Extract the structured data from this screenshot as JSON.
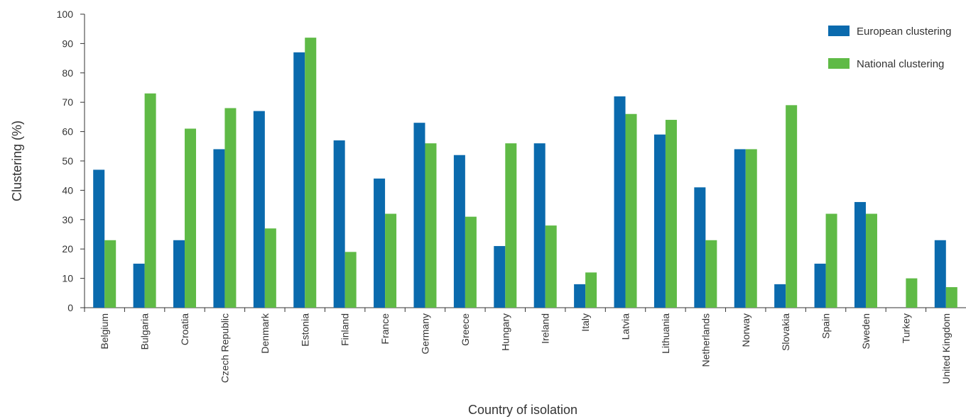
{
  "chart_data": {
    "type": "bar",
    "title": "",
    "xlabel": "Country of isolation",
    "ylabel": "Clustering (%)",
    "ylim": [
      0,
      100
    ],
    "yticks": [
      0,
      10,
      20,
      30,
      40,
      50,
      60,
      70,
      80,
      90,
      100
    ],
    "grid": false,
    "legend_position": "top-right",
    "categories": [
      "Belgium",
      "Bulgaria",
      "Croatia",
      "Czech Republic",
      "Denmark",
      "Estonia",
      "Finland",
      "France",
      "Germany",
      "Greece",
      "Hungary",
      "Ireland",
      "Italy",
      "Latvia",
      "Lithuania",
      "Netherlands",
      "Norway",
      "Slovakia",
      "Spain",
      "Sweden",
      "Turkey",
      "United Kingdom"
    ],
    "series": [
      {
        "name": "European clustering",
        "color": "#0a6aad",
        "values": [
          47,
          15,
          23,
          54,
          67,
          87,
          57,
          44,
          63,
          52,
          21,
          56,
          8,
          72,
          59,
          41,
          54,
          8,
          15,
          36,
          0,
          23
        ]
      },
      {
        "name": "National clustering",
        "color": "#5fba46",
        "values": [
          23,
          73,
          61,
          68,
          27,
          92,
          19,
          32,
          56,
          31,
          56,
          28,
          12,
          66,
          64,
          23,
          54,
          69,
          32,
          32,
          10,
          7
        ]
      }
    ]
  }
}
